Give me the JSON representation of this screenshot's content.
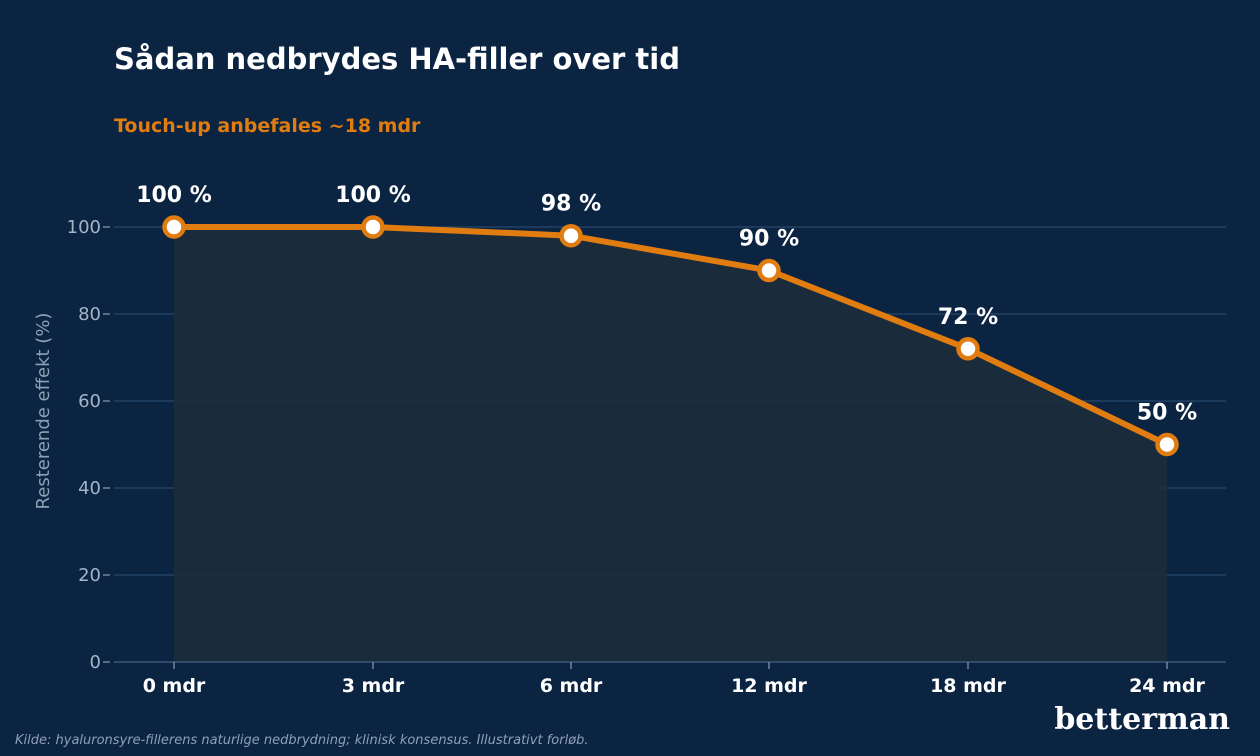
{
  "chart_data": {
    "type": "line",
    "title": "Sådan nedbrydes HA-filler over tid",
    "subtitle": "Touch-up anbefales ~18 mdr",
    "xlabel": "",
    "ylabel": "Resterende effekt (%)",
    "categories": [
      "0 mdr",
      "3 mdr",
      "6 mdr",
      "12 mdr",
      "18 mdr",
      "24 mdr"
    ],
    "values": [
      100,
      100,
      98,
      90,
      72,
      50
    ],
    "data_labels": [
      "100 %",
      "100 %",
      "98 %",
      "90 %",
      "72 %",
      "50 %"
    ],
    "ylim": [
      0,
      100
    ],
    "yticks": [
      0,
      20,
      40,
      60,
      80,
      100
    ],
    "grid": true,
    "area_fill": true
  },
  "colors": {
    "background": "#0b2442",
    "line": "#e07c10",
    "subtitle": "#e07c10",
    "area": "#1c2c3c",
    "grid": "#25476b",
    "marker_fill": "#ffffff"
  },
  "source_note": "Kilde: hyaluronsyre-fillerens naturlige nedbrydning; klinisk konsensus. Illustrativt forløb.",
  "brand": "betterman"
}
